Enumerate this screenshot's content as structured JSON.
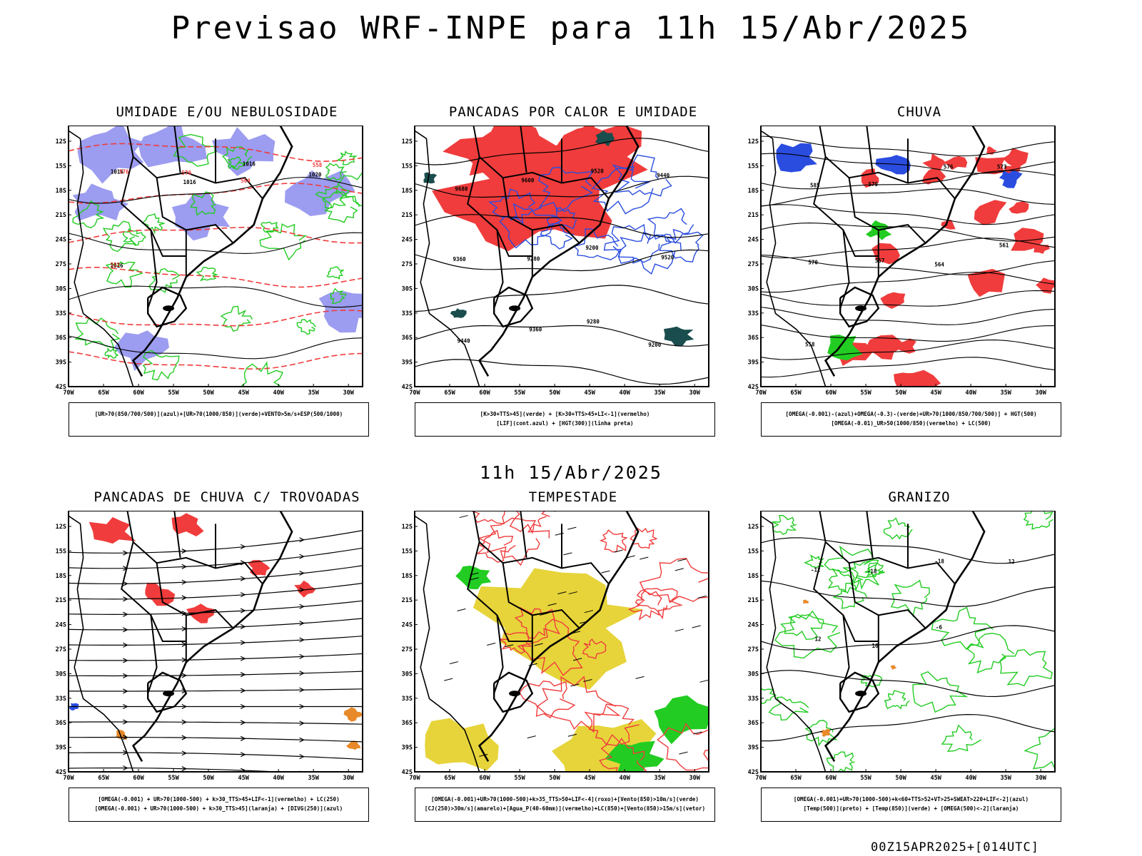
{
  "title": "Previsao WRF-INPE  para 11h 15/Abr/2025",
  "mid_date": "11h 15/Abr/2025",
  "footer": "00Z15APR2025+[014UTC]",
  "axes": {
    "lat_labels": [
      "12S",
      "15S",
      "18S",
      "21S",
      "24S",
      "27S",
      "30S",
      "33S",
      "36S",
      "39S",
      "42S"
    ],
    "lon_labels": [
      "70W",
      "65W",
      "60W",
      "55W",
      "50W",
      "45W",
      "40W",
      "35W",
      "30W"
    ]
  },
  "colors": {
    "red": "#f03c3c",
    "green": "#22cc22",
    "blue": "#2a4de0",
    "lavender": "#9c9cf0",
    "yellow": "#e6d43a",
    "darkgreen": "#1a4d4d",
    "orange": "#e88a2a"
  },
  "panels": [
    {
      "id": "umidade",
      "title": "UMIDADE E/OU NEBULOSIDADE",
      "legend": [
        "[UR>70(850/700/500)](azul)+[UR>70(1000/850)](verde)+VENTO>5m/s+ESP(500/1000)"
      ],
      "contour_labels": [
        "1016",
        "1016",
        "1016",
        "1020",
        "1016",
        "576",
        "570",
        "564",
        "558",
        "552"
      ]
    },
    {
      "id": "pancadas-calor",
      "title": "PANCADAS POR CALOR E UMIDADE",
      "legend": [
        "[K>30+TTS>45](verde) + [K>30+TTS>45+LI<-1](vermelho)",
        "[LIF](cont.azul) + [HGT(300)](linha preta)"
      ],
      "contour_labels": [
        "9680",
        "9600",
        "9520",
        "9440",
        "9360",
        "9280",
        "9200",
        "9520",
        "9440",
        "9360",
        "9280",
        "9200"
      ]
    },
    {
      "id": "chuva",
      "title": "CHUVA",
      "legend": [
        "[OMEGA(-0.001)-(azul)+OMEGA(-0.3)-(verde)+UR>70(1000/850/700/500)] + HGT(500)",
        "[OMEGA(-0.01)_UR>50(1000/850)(vermelho) + LC(500)"
      ],
      "contour_labels": [
        "585",
        "579",
        "576",
        "573",
        "570",
        "567",
        "564",
        "561",
        "558"
      ]
    },
    {
      "id": "trovoadas",
      "title": "PANCADAS DE CHUVA C/ TROVOADAS",
      "legend": [
        "[OMEGA(-0.001) + UR>70(1000-500) + k>30_TTS>45+LIF<-1](vermelho) + LC(250)",
        "[OMEGA(-0.001) + UR>70(1000-500) + k>30_TTS>45](laranja) + [DIVG(250)](azul)"
      ],
      "contour_labels": []
    },
    {
      "id": "tempestade",
      "title": "TEMPESTADE",
      "legend": [
        "[OMEGA(-0.001)+UR>70(1000-500)+k>35_TTS>50+LIF<-4](roxo)+[Vento(850)>10m/s](verde)",
        "[CJ(250)>30m/s](amarelo)+[Agua_P(40-60mm)](vermelho)+LC(850)+[Vento(850)>15m/s](vetor)"
      ],
      "contour_labels": []
    },
    {
      "id": "granizo",
      "title": "GRANIZO",
      "legend": [
        "[OMEGA(-0.001)+UR>70(1000-500)+k<60+TTS>52+VT>25+SWEAT>220+LIF<-2](azul)",
        "[Temp(500)](preto) + [Temp(850)](verde) + [OMEGA(500)<-2](laranja)"
      ],
      "contour_labels": [
        "-12",
        "-18",
        "-18",
        "12",
        "12",
        "16",
        "-6"
      ]
    }
  ]
}
